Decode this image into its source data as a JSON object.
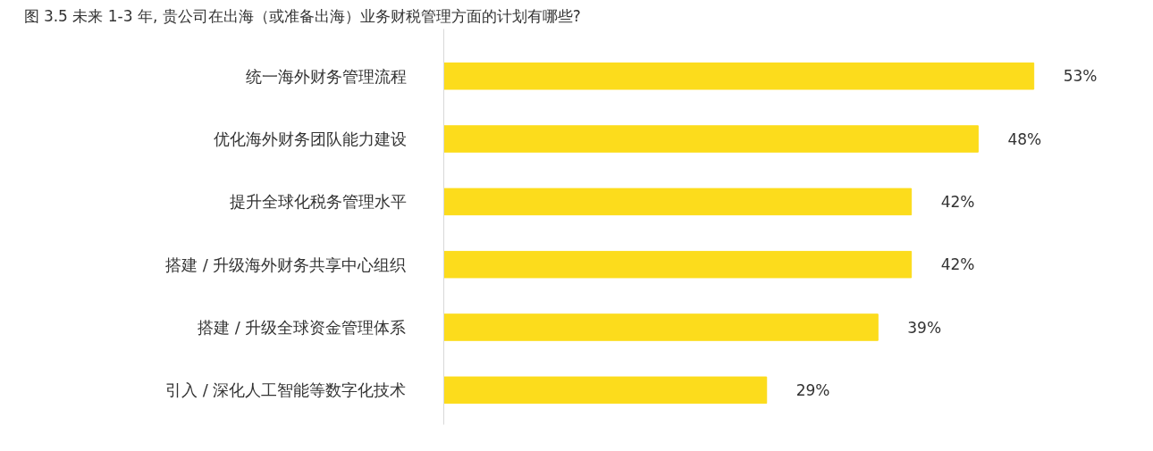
{
  "chart_data": {
    "type": "bar",
    "orientation": "horizontal",
    "title": "图 3.5 未来 1-3 年, 贵公司在出海（或准备出海）业务财税管理方面的计划有哪些?",
    "categories": [
      "统一海外财务管理流程",
      "优化海外财务团队能力建设",
      "提升全球化税务管理水平",
      "搭建 / 升级海外财务共享中心组织",
      "搭建 / 升级全球资金管理体系",
      "引入 / 深化人工智能等数字化技术"
    ],
    "values": [
      53,
      48,
      42,
      42,
      39,
      29
    ],
    "value_labels": [
      "53%",
      "48%",
      "42%",
      "42%",
      "39%",
      "29%"
    ],
    "color": "#fcdc1c",
    "grid": false
  }
}
